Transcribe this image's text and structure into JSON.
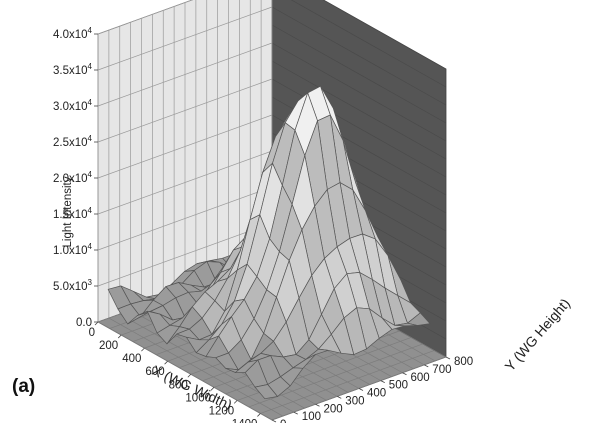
{
  "chart_data": {
    "type": "surface3d",
    "panel_label": "(a)",
    "xlabel": "X (WG Width)",
    "ylabel": "Y (WG Height)",
    "zlabel": "Light Intensity",
    "x_ticks": [
      "0",
      "200",
      "400",
      "600",
      "800",
      "1000",
      "1200",
      "1400"
    ],
    "y_ticks": [
      "0",
      "100",
      "200",
      "300",
      "400",
      "500",
      "600",
      "700",
      "800"
    ],
    "z_ticks": [
      {
        "mantissa": "0.0",
        "exp": ""
      },
      {
        "mantissa": "5.0x10",
        "exp": "3"
      },
      {
        "mantissa": "1.0x10",
        "exp": "4"
      },
      {
        "mantissa": "1.5x10",
        "exp": "4"
      },
      {
        "mantissa": "2.0x10",
        "exp": "4"
      },
      {
        "mantissa": "2.5x10",
        "exp": "4"
      },
      {
        "mantissa": "3.0x10",
        "exp": "4"
      },
      {
        "mantissa": "3.5x10",
        "exp": "4"
      },
      {
        "mantissa": "4.0x10",
        "exp": "4"
      }
    ],
    "xlim": [
      0,
      1500
    ],
    "ylim": [
      0,
      800
    ],
    "zlim": [
      0,
      40000
    ],
    "peak_x": 850,
    "peak_y": 520,
    "peak_value": 35000,
    "grid": true,
    "colors": {
      "side_wall": "#e6e6e6",
      "back_wall": "#555555",
      "floor": "#909090",
      "grid_line": "#9a9a9a",
      "mesh_line": "#555555",
      "bands": [
        "#9b9b9b",
        "#b8b8b8",
        "#d0d0d0",
        "#bdbdbd",
        "#e2e2e2",
        "#bcbcbc",
        "#f0f0f0",
        "#d6d6d6"
      ]
    }
  }
}
